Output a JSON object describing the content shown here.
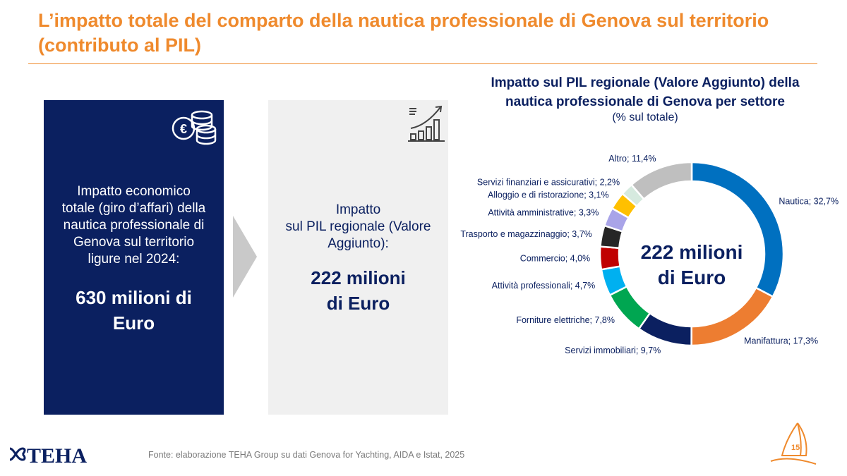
{
  "header": {
    "title_line1": "L’impatto totale del comparto della nautica professionale di Genova sul territorio",
    "title_line2": "(contributo al PIL)"
  },
  "box_left": {
    "label_lines": [
      "Impatto economico",
      "totale (giro d’affari) della",
      "nautica professionale di",
      "Genova sul territorio",
      "ligure nel 2024:"
    ],
    "value_lines": [
      "630 milioni di",
      "Euro"
    ],
    "icon": "euro-coins-icon"
  },
  "box_right": {
    "label_lines": [
      "Impatto",
      "sul PIL regionale (Valore",
      "Aggiunto):"
    ],
    "value_lines": [
      "222 milioni",
      "di Euro"
    ],
    "icon": "growth-chart-icon"
  },
  "chart_data": {
    "type": "pie",
    "title_lines": [
      "Impatto sul PIL regionale (Valore Aggiunto) della",
      "nautica professionale di Genova per settore"
    ],
    "subtitle": "(% sul totale)",
    "center_label_lines": [
      "222 milioni",
      "di Euro"
    ],
    "slices": [
      {
        "label": "Nautica; 32,7%",
        "value": 32.7,
        "color": "#0070c0"
      },
      {
        "label": "Manifattura; 17,3%",
        "value": 17.3,
        "color": "#ed7d31"
      },
      {
        "label": "Servizi immobiliari; 9,7%",
        "value": 9.7,
        "color": "#0b2060"
      },
      {
        "label": "Forniture elettriche; 7,8%",
        "value": 7.8,
        "color": "#00a651"
      },
      {
        "label": "Attività professionali; 4,7%",
        "value": 4.7,
        "color": "#00b0f0"
      },
      {
        "label": "Commercio; 4,0%",
        "value": 4.0,
        "color": "#c00000"
      },
      {
        "label": "Trasporto e magazzinaggio; 3,7%",
        "value": 3.7,
        "color": "#262626"
      },
      {
        "label": "Attività amministrative; 3,3%",
        "value": 3.3,
        "color": "#a9a4e8"
      },
      {
        "label": "Alloggio e di ristorazione; 3,1%",
        "value": 3.1,
        "color": "#ffc000"
      },
      {
        "label": "Servizi finanziari e assicurativi; 2,2%",
        "value": 2.2,
        "color": "#d6eadf"
      },
      {
        "label": "Altro; 11,4%",
        "value": 11.4,
        "color": "#bfbfbf"
      }
    ]
  },
  "footer": {
    "source": "Fonte: elaborazione TEHA Group su dati Genova for Yachting, AIDA e Istat, 2025",
    "logo_text": "TEHA",
    "page_number": "15"
  }
}
